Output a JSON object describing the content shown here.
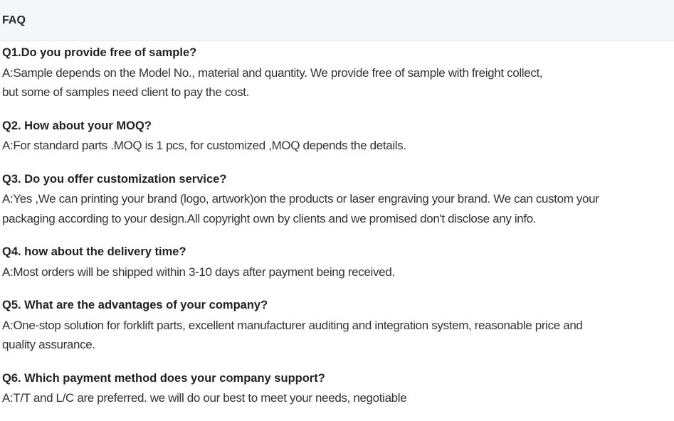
{
  "header": {
    "title": "FAQ"
  },
  "faq": [
    {
      "question": "Q1.Do you provide free of sample?",
      "answer_lines": [
        "A:Sample depends on the Model No., material and quantity. We provide free of sample with freight collect,",
        "but some of samples need client to pay the cost."
      ]
    },
    {
      "question": "Q2. How about your MOQ?",
      "answer_lines": [
        "A:For standard parts .MOQ is 1 pcs, for customized ,MOQ depends the details."
      ]
    },
    {
      "question": "Q3. Do you offer customization service?",
      "answer_lines": [
        "A:Yes ,We can printing your brand (logo, artwork)on the products or laser engraving your brand. We can custom your",
        "packaging according to your design.All copyright own by clients and we promised don't disclose any info."
      ]
    },
    {
      "question": "Q4. how about the delivery time?",
      "answer_lines": [
        "A:Most orders will be shipped within 3-10 days after payment being received."
      ]
    },
    {
      "question": "Q5. What are the advantages of your company?",
      "answer_lines": [
        "A:One-stop solution for forklift parts, excellent manufacturer auditing and integration system, reasonable price and",
        "quality assurance."
      ]
    },
    {
      "question": "Q6. Which payment method does your company support?",
      "answer_lines": [
        "A:T/T and L/C are preferred. we will do our best to meet your needs, negotiable"
      ]
    }
  ]
}
